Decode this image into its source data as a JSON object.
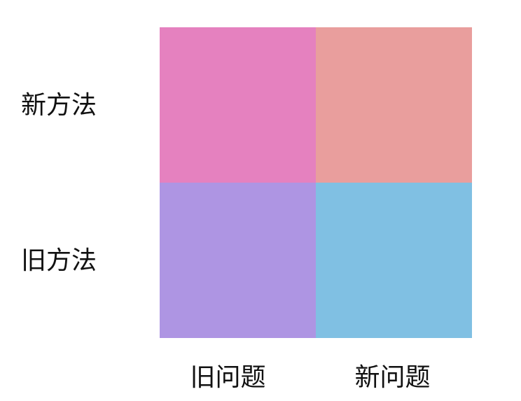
{
  "rows": [
    {
      "label": "新方法"
    },
    {
      "label": "旧方法"
    }
  ],
  "columns": [
    {
      "label": "旧问题"
    },
    {
      "label": "新问题"
    }
  ],
  "quadrants": {
    "new_method_old_problem": {
      "color": "#e581bf"
    },
    "new_method_new_problem": {
      "color": "#e99e9d"
    },
    "old_method_old_problem": {
      "color": "#ae95e3"
    },
    "old_method_new_problem": {
      "color": "#80c0e3"
    }
  }
}
